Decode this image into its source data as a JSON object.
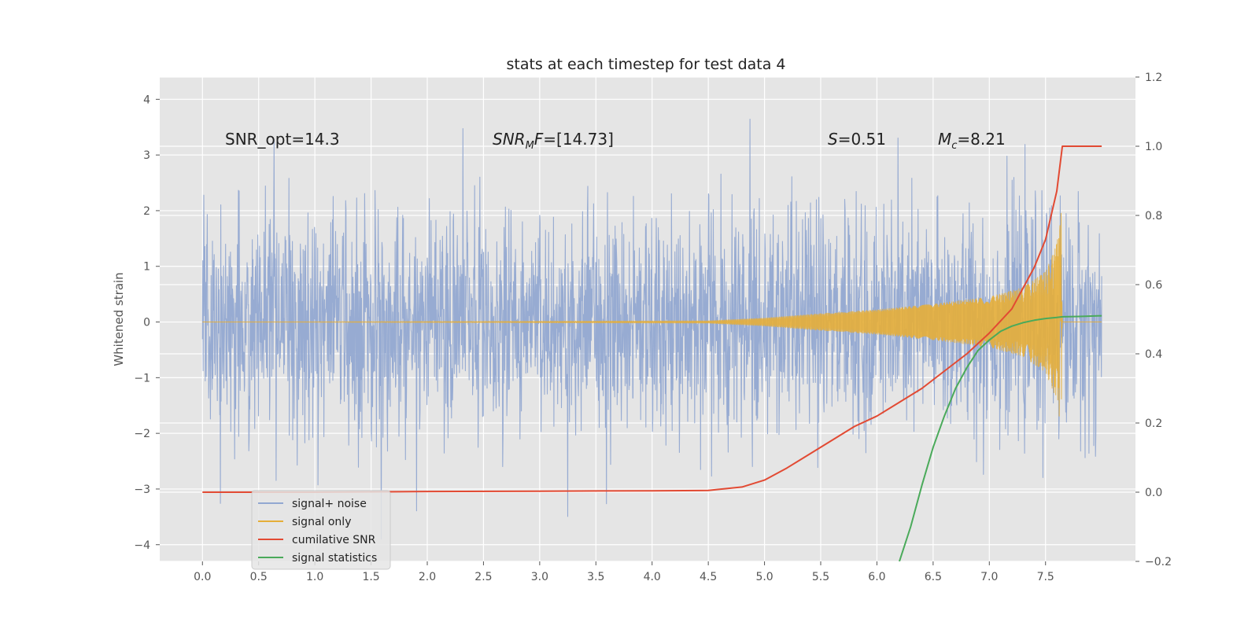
{
  "chart_data": {
    "type": "line",
    "title": "stats at each timestep for test data 4",
    "xlabel": "",
    "ylabel": "Whitened strain",
    "y2label": "",
    "xlim": [
      -0.38,
      8.3
    ],
    "ylim": [
      -4.3,
      4.4
    ],
    "y2lim": [
      -0.2,
      1.2
    ],
    "xticks": [
      0.0,
      0.5,
      1.0,
      1.5,
      2.0,
      2.5,
      3.0,
      3.5,
      4.0,
      4.5,
      5.0,
      5.5,
      6.0,
      6.5,
      7.0,
      7.5
    ],
    "xtick_labels": [
      "0.0",
      "0.5",
      "1.0",
      "1.5",
      "2.0",
      "2.5",
      "3.0",
      "3.5",
      "4.0",
      "4.5",
      "5.0",
      "5.5",
      "6.0",
      "6.5",
      "7.0",
      "7.5"
    ],
    "yticks": [
      4,
      3,
      2,
      1,
      0,
      -1,
      -2,
      -3,
      -4
    ],
    "ytick_labels": [
      "4",
      "3",
      "2",
      "1",
      "0",
      "−1",
      "−2",
      "−3",
      "−4"
    ],
    "y2ticks": [
      1.2,
      1.0,
      0.8,
      0.6,
      0.4,
      0.2,
      0.0,
      -0.2
    ],
    "y2tick_labels": [
      "1.2",
      "1.0",
      "0.8",
      "0.6",
      "0.4",
      "0.2",
      "0.0",
      "−0.2"
    ],
    "grid": true,
    "legend_position": "lower-left",
    "colors": {
      "background": "#e5e5e5",
      "grid": "#ffffff",
      "signal_noise": "#92a8d1",
      "signal_only": "#e5ae38",
      "cumulative_snr": "#e24a33",
      "signal_statistics": "#4aaa5a"
    },
    "annotations": [
      {
        "id": "snr-opt",
        "text": "SNR_opt=14.3"
      },
      {
        "id": "snr-mf",
        "base": "SNR",
        "sub": "M",
        "rest": "F=[14.73]"
      },
      {
        "id": "s-stat",
        "base": "S",
        "rest": "=0.51"
      },
      {
        "id": "mc",
        "base": "M",
        "sub": "c",
        "rest": "=8.21"
      }
    ],
    "series": [
      {
        "name": "signal+ noise",
        "axis": "left",
        "style": "noise",
        "x_start": 0.0,
        "x_end": 8.0,
        "amplitude_range": [
          -3.9,
          4.0
        ]
      },
      {
        "name": "signal only",
        "axis": "left",
        "style": "chirp",
        "x_start": 0.0,
        "x_end": 8.0,
        "merger_time": 7.65,
        "envelope": [
          [
            0.0,
            0.0
          ],
          [
            4.5,
            0.02
          ],
          [
            5.0,
            0.07
          ],
          [
            5.5,
            0.15
          ],
          [
            6.0,
            0.22
          ],
          [
            6.5,
            0.32
          ],
          [
            7.0,
            0.45
          ],
          [
            7.3,
            0.62
          ],
          [
            7.5,
            0.9
          ],
          [
            7.6,
            1.4
          ],
          [
            7.64,
            2.0
          ],
          [
            7.65,
            0.0
          ],
          [
            8.0,
            0.0
          ]
        ]
      },
      {
        "name": "cumilative SNR",
        "axis": "right",
        "x": [
          0.0,
          1.0,
          2.0,
          3.0,
          4.0,
          4.5,
          4.8,
          5.0,
          5.2,
          5.4,
          5.6,
          5.8,
          6.0,
          6.2,
          6.4,
          6.6,
          6.8,
          7.0,
          7.2,
          7.4,
          7.5,
          7.6,
          7.65,
          7.8,
          8.0
        ],
        "y": [
          0.0,
          0.0,
          0.002,
          0.003,
          0.004,
          0.005,
          0.015,
          0.035,
          0.07,
          0.11,
          0.15,
          0.19,
          0.22,
          0.26,
          0.3,
          0.35,
          0.4,
          0.46,
          0.53,
          0.65,
          0.73,
          0.87,
          1.0,
          1.0,
          1.0
        ]
      },
      {
        "name": "signal statistics",
        "axis": "right",
        "x": [
          6.2,
          6.3,
          6.4,
          6.5,
          6.6,
          6.7,
          6.8,
          6.9,
          7.0,
          7.1,
          7.2,
          7.3,
          7.4,
          7.5,
          7.6,
          7.65,
          7.8,
          8.0
        ],
        "y": [
          -0.2,
          -0.1,
          0.02,
          0.13,
          0.22,
          0.3,
          0.36,
          0.41,
          0.44,
          0.465,
          0.48,
          0.49,
          0.497,
          0.502,
          0.505,
          0.507,
          0.508,
          0.51
        ]
      }
    ]
  }
}
